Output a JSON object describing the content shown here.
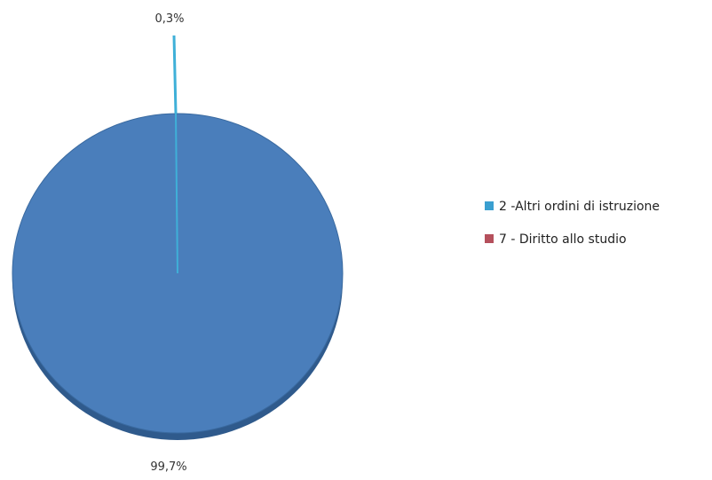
{
  "chart_data": {
    "type": "pie",
    "categories": [
      "2 -Altri ordini di istruzione",
      "7 - Diritto allo studio"
    ],
    "values": [
      99.7,
      0.3
    ],
    "data_labels": [
      "99,7%",
      "0,3%"
    ],
    "colors": [
      "#4a7ebb",
      "#c0504d"
    ],
    "pie_color": "#4a7ebb",
    "pie_edge_color": "#3a6aa0",
    "pie_shadow_color": "#2f5a8c",
    "small_slice_color": "#3fb0d8",
    "legend_swatch_colors": [
      "#3a9fd0",
      "#b5505c"
    ],
    "legend_position": "right"
  }
}
